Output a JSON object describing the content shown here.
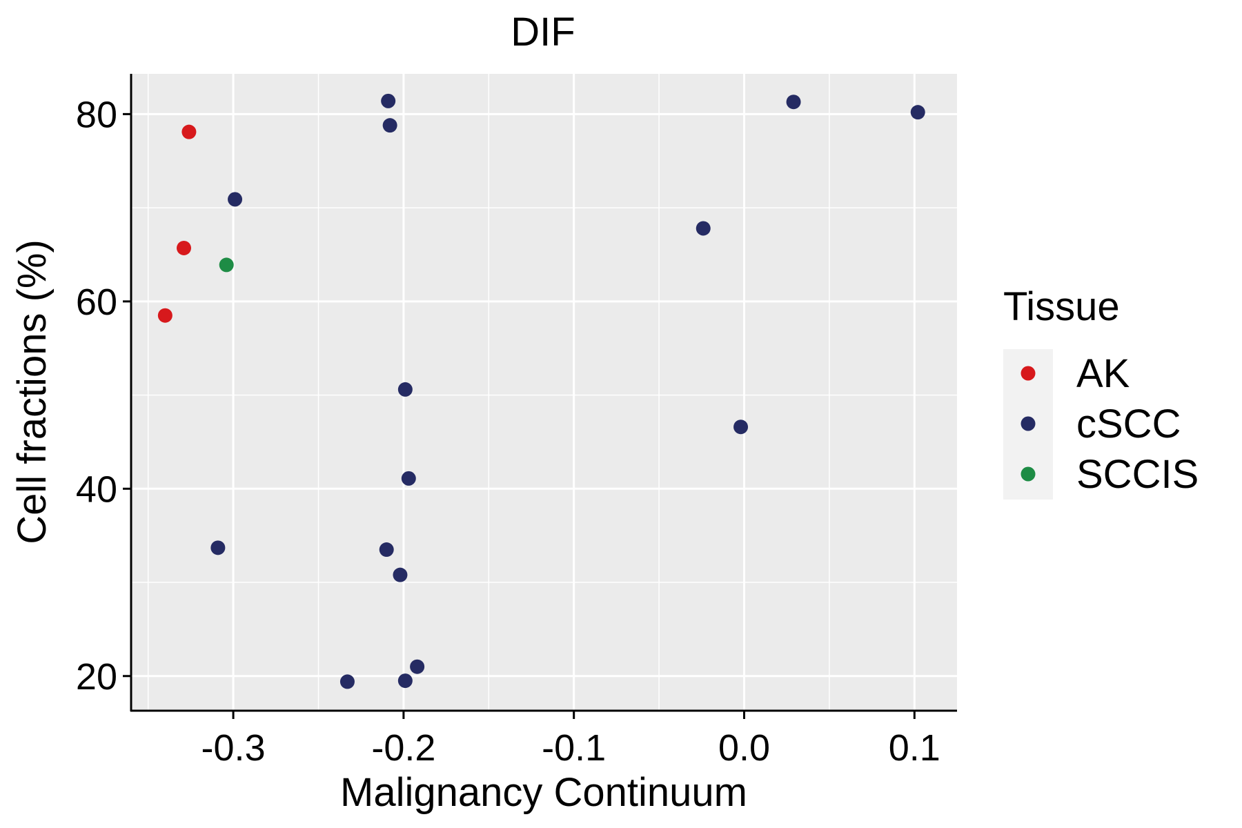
{
  "chart_data": {
    "type": "scatter",
    "title": "DIF",
    "xlabel": "Malignancy Continuum",
    "ylabel": "Cell fractions (%)",
    "xlim": [
      -0.36,
      0.125
    ],
    "ylim": [
      16.3,
      84.3
    ],
    "xticks": [
      -0.3,
      -0.2,
      -0.1,
      0.0,
      0.1
    ],
    "xtick_labels": [
      "-0.3",
      "-0.2",
      "-0.1",
      "0.0",
      "0.1"
    ],
    "yticks": [
      20,
      40,
      60,
      80
    ],
    "ytick_labels": [
      "20",
      "40",
      "60",
      "80"
    ],
    "x_minor_gridlines": [
      -0.35,
      -0.25,
      -0.15,
      -0.05,
      0.05
    ],
    "y_minor_gridlines": [
      30,
      50,
      70
    ],
    "grid": true,
    "panel_background": "#EBEBEB",
    "legend": {
      "title": "Tissue",
      "placement": "right",
      "entries": [
        {
          "label": "AK",
          "color": "#D7191C"
        },
        {
          "label": "cSCC",
          "color": "#252B63"
        },
        {
          "label": "SCCIS",
          "color": "#1E8C45"
        }
      ]
    },
    "series": [
      {
        "name": "AK",
        "color": "#D7191C",
        "points": [
          {
            "x": -0.326,
            "y": 78.1
          },
          {
            "x": -0.329,
            "y": 65.7
          },
          {
            "x": -0.34,
            "y": 58.5
          }
        ]
      },
      {
        "name": "cSCC",
        "color": "#252B63",
        "points": [
          {
            "x": -0.209,
            "y": 81.4
          },
          {
            "x": -0.208,
            "y": 78.8
          },
          {
            "x": 0.029,
            "y": 81.3
          },
          {
            "x": 0.102,
            "y": 80.2
          },
          {
            "x": -0.299,
            "y": 70.9
          },
          {
            "x": -0.024,
            "y": 67.8
          },
          {
            "x": -0.199,
            "y": 50.6
          },
          {
            "x": -0.002,
            "y": 46.6
          },
          {
            "x": -0.197,
            "y": 41.1
          },
          {
            "x": -0.309,
            "y": 33.7
          },
          {
            "x": -0.21,
            "y": 33.5
          },
          {
            "x": -0.202,
            "y": 30.8
          },
          {
            "x": -0.192,
            "y": 21.0
          },
          {
            "x": -0.233,
            "y": 19.4
          },
          {
            "x": -0.199,
            "y": 19.5
          }
        ]
      },
      {
        "name": "SCCIS",
        "color": "#1E8C45",
        "points": [
          {
            "x": -0.304,
            "y": 63.9
          }
        ]
      }
    ]
  }
}
